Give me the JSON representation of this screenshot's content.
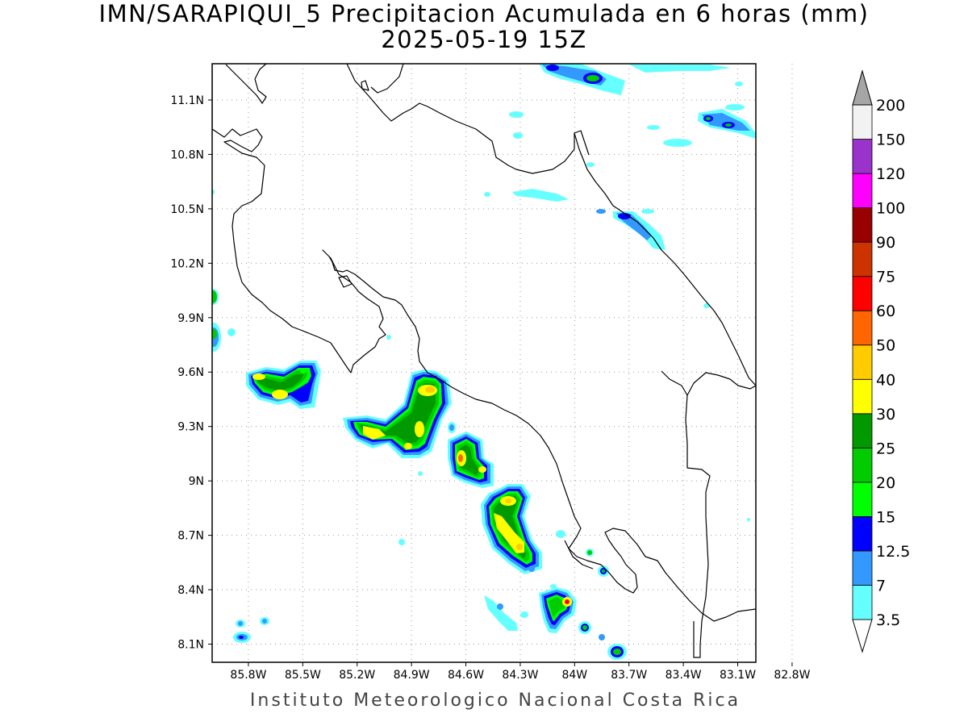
{
  "title": "IMN/SARAPIQUI_5 Precipitacion Acumulada en 6 horas (mm)",
  "subtitle": "2025-05-19 15Z",
  "footer": "Instituto Meteorologico Nacional Costa Rica",
  "map": {
    "lat_labels": [
      {
        "label": "11.1N",
        "value": 11.1
      },
      {
        "label": "10.8N",
        "value": 10.8
      },
      {
        "label": "10.5N",
        "value": 10.5
      },
      {
        "label": "10.2N",
        "value": 10.2
      },
      {
        "label": "9.9N",
        "value": 9.9
      },
      {
        "label": "9.6N",
        "value": 9.6
      },
      {
        "label": "9.3N",
        "value": 9.3
      },
      {
        "label": "9N",
        "value": 9.0
      },
      {
        "label": "8.7N",
        "value": 8.7
      },
      {
        "label": "8.4N",
        "value": 8.4
      },
      {
        "label": "8.1N",
        "value": 8.1
      }
    ],
    "lon_labels": [
      {
        "label": "85.8W",
        "value": -85.8
      },
      {
        "label": "85.5W",
        "value": -85.5
      },
      {
        "label": "85.2W",
        "value": -85.2
      },
      {
        "label": "84.9W",
        "value": -84.9
      },
      {
        "label": "84.6W",
        "value": -84.6
      },
      {
        "label": "84.3W",
        "value": -84.3
      },
      {
        "label": "84W",
        "value": -84.0
      },
      {
        "label": "83.7W",
        "value": -83.7
      },
      {
        "label": "83.4W",
        "value": -83.4
      },
      {
        "label": "83.1W",
        "value": -83.1
      },
      {
        "label": "82.8W",
        "value": -82.8
      }
    ],
    "lat_range": [
      8.0,
      11.3
    ],
    "lon_range": [
      -86.0,
      -83.0
    ]
  },
  "legend": {
    "unit": "mm",
    "levels": [
      "3.5",
      "7",
      "12.5",
      "15",
      "20",
      "25",
      "30",
      "40",
      "50",
      "60",
      "75",
      "90",
      "100",
      "120",
      "150",
      "200"
    ],
    "colors": [
      "#ffffff",
      "#66ffff",
      "#3399ff",
      "#0000ff",
      "#00ff00",
      "#00cc00",
      "#009900",
      "#ffff00",
      "#ffcc00",
      "#ff6600",
      "#ff0000",
      "#cc3300",
      "#990000",
      "#ff00ff",
      "#9933cc",
      "#f2f2f2",
      "#a6a6a6"
    ]
  }
}
